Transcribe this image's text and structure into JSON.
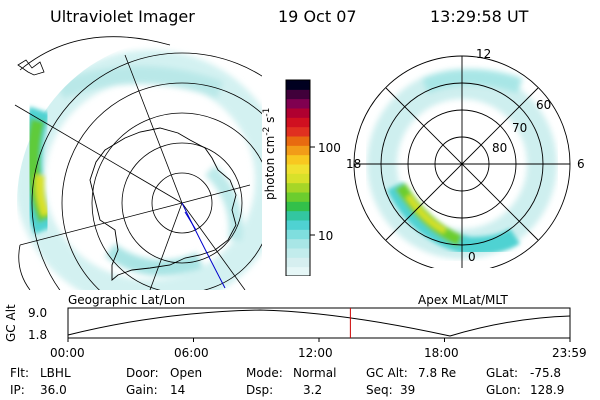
{
  "header": {
    "instrument": "Ultraviolet Imager",
    "date": "19 Oct 07",
    "time": "13:29:58 UT"
  },
  "geo_panel": {
    "label": "Geographic Lat/Lon"
  },
  "apex_panel": {
    "label": "Apex MLat/MLT",
    "mlt_labels": [
      "12",
      "18",
      "6",
      "0"
    ],
    "lat_labels": [
      "60",
      "70",
      "80"
    ]
  },
  "colorbar": {
    "unit_label": "photon cm",
    "unit_exp": "-2",
    "unit_mid": "s",
    "unit_exp2": "-1",
    "ticks": [
      "100",
      "10"
    ],
    "colors": [
      "#e6f7f7",
      "#d6eff0",
      "#c2ecec",
      "#a8e6e6",
      "#7fdede",
      "#4fd2d2",
      "#33c6a0",
      "#33c04a",
      "#6ccd2e",
      "#a6d627",
      "#d8e12a",
      "#f0e130",
      "#f8c820",
      "#f29c18",
      "#e86a10",
      "#e03020",
      "#d01020",
      "#b00030",
      "#800050",
      "#40003a",
      "#000020"
    ]
  },
  "orbit": {
    "ylabel": "GC Alt",
    "y_ticks": [
      "9.0",
      "1.8"
    ],
    "x_ticks": [
      "00:00",
      "06:00",
      "12:00",
      "18:00",
      "23:59"
    ],
    "current_marker_hours": 13.5
  },
  "info": {
    "flt_label": "Flt:",
    "flt_value": "LBHL",
    "ip_label": "IP:",
    "ip_value": "36.0",
    "door_label": "Door:",
    "door_value": "Open",
    "gain_label": "Gain:",
    "gain_value": "14",
    "mode_label": "Mode:",
    "mode_value": "Normal",
    "dsp_label": "Dsp:",
    "dsp_value": "3.2",
    "gcalt_label": "GC Alt:",
    "gcalt_value": "7.8 Re",
    "seq_label": "Seq:",
    "seq_value": "39",
    "glat_label": "GLat:",
    "glat_value": "-75.8",
    "glon_label": "GLon:",
    "glon_value": "128.9"
  }
}
